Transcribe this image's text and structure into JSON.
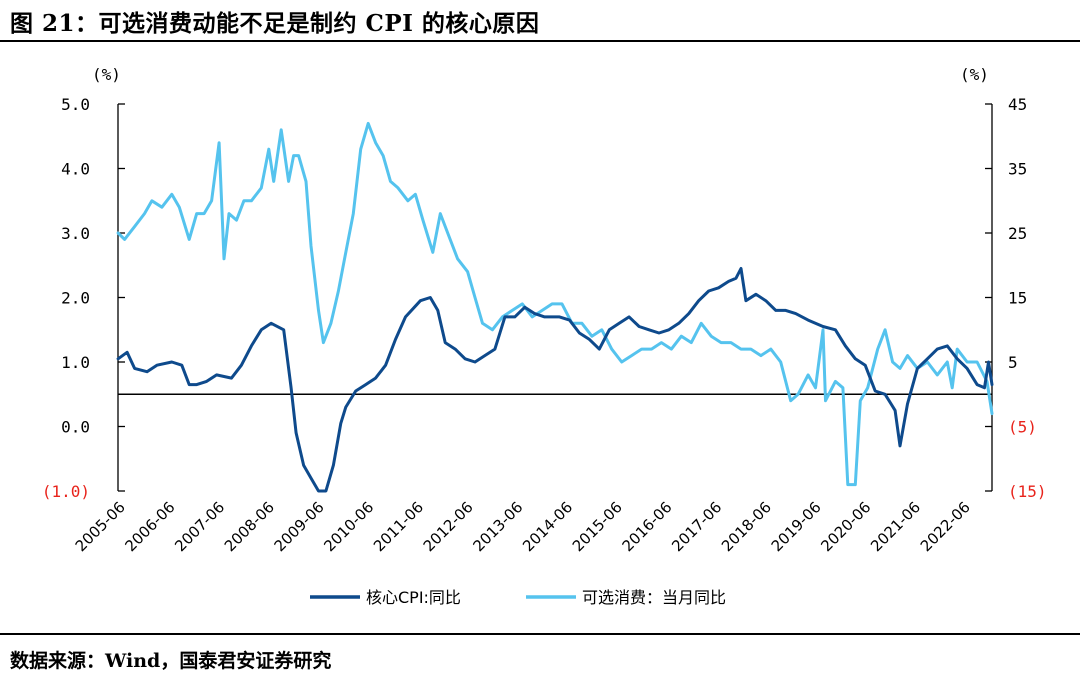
{
  "figure": {
    "title": "图 21：可选消费动能不足是制约 CPI 的核心原因",
    "source": "数据来源：Wind，国泰君安证券研究"
  },
  "colors": {
    "core_cpi": "#0e4a8c",
    "discretionary": "#55c3ee",
    "axis": "#000000",
    "negative_label": "#e8231b"
  },
  "chart_data": {
    "type": "line",
    "left_axis": {
      "unit": "(%)",
      "ylim": [
        -1.0,
        5.0
      ],
      "ticks": [
        5.0,
        4.0,
        3.0,
        2.0,
        1.0,
        0.0,
        -1.0
      ],
      "tick_labels": [
        "5.0",
        "4.0",
        "3.0",
        "2.0",
        "1.0",
        "0.0",
        "(1.0)"
      ]
    },
    "right_axis": {
      "unit": "(%)",
      "ylim": [
        -15,
        45
      ],
      "ticks": [
        45,
        35,
        25,
        15,
        5,
        -5,
        -15
      ],
      "tick_labels": [
        "45",
        "35",
        "25",
        "15",
        "5",
        "(5)",
        "(15)"
      ]
    },
    "x_range": [
      2005.417,
      2023.0
    ],
    "x_ticks": [
      2005.417,
      2006.417,
      2007.417,
      2008.417,
      2009.417,
      2010.417,
      2011.417,
      2012.417,
      2013.417,
      2014.417,
      2015.417,
      2016.417,
      2017.417,
      2018.417,
      2019.417,
      2020.417,
      2021.417,
      2022.417
    ],
    "x_tick_labels": [
      "2005-06",
      "2006-06",
      "2007-06",
      "2008-06",
      "2009-06",
      "2010-06",
      "2011-06",
      "2012-06",
      "2013-06",
      "2014-06",
      "2015-06",
      "2016-06",
      "2017-06",
      "2018-06",
      "2019-06",
      "2020-06",
      "2021-06",
      "2022-06"
    ],
    "series": [
      {
        "name": "核心CPI:同比",
        "axis": "left",
        "points": [
          [
            2005.42,
            1.05
          ],
          [
            2005.6,
            1.15
          ],
          [
            2005.75,
            0.9
          ],
          [
            2006.0,
            0.85
          ],
          [
            2006.2,
            0.95
          ],
          [
            2006.5,
            1.0
          ],
          [
            2006.7,
            0.95
          ],
          [
            2006.85,
            0.65
          ],
          [
            2007.0,
            0.65
          ],
          [
            2007.2,
            0.7
          ],
          [
            2007.4,
            0.8
          ],
          [
            2007.7,
            0.75
          ],
          [
            2007.9,
            0.95
          ],
          [
            2008.1,
            1.25
          ],
          [
            2008.3,
            1.5
          ],
          [
            2008.5,
            1.6
          ],
          [
            2008.75,
            1.5
          ],
          [
            2008.9,
            0.6
          ],
          [
            2009.0,
            -0.1
          ],
          [
            2009.15,
            -0.6
          ],
          [
            2009.3,
            -0.8
          ],
          [
            2009.45,
            -1.0
          ],
          [
            2009.6,
            -1.0
          ],
          [
            2009.75,
            -0.6
          ],
          [
            2009.9,
            0.05
          ],
          [
            2010.0,
            0.3
          ],
          [
            2010.2,
            0.55
          ],
          [
            2010.4,
            0.65
          ],
          [
            2010.6,
            0.75
          ],
          [
            2010.8,
            0.95
          ],
          [
            2011.0,
            1.35
          ],
          [
            2011.2,
            1.7
          ],
          [
            2011.5,
            1.95
          ],
          [
            2011.7,
            2.0
          ],
          [
            2011.85,
            1.8
          ],
          [
            2012.0,
            1.3
          ],
          [
            2012.2,
            1.2
          ],
          [
            2012.4,
            1.05
          ],
          [
            2012.6,
            1.0
          ],
          [
            2012.8,
            1.1
          ],
          [
            2013.0,
            1.2
          ],
          [
            2013.2,
            1.7
          ],
          [
            2013.4,
            1.7
          ],
          [
            2013.6,
            1.85
          ],
          [
            2013.8,
            1.75
          ],
          [
            2014.0,
            1.7
          ],
          [
            2014.3,
            1.7
          ],
          [
            2014.5,
            1.65
          ],
          [
            2014.7,
            1.45
          ],
          [
            2014.9,
            1.35
          ],
          [
            2015.1,
            1.2
          ],
          [
            2015.3,
            1.5
          ],
          [
            2015.5,
            1.6
          ],
          [
            2015.7,
            1.7
          ],
          [
            2015.9,
            1.55
          ],
          [
            2016.1,
            1.5
          ],
          [
            2016.3,
            1.45
          ],
          [
            2016.5,
            1.5
          ],
          [
            2016.7,
            1.6
          ],
          [
            2016.9,
            1.75
          ],
          [
            2017.1,
            1.95
          ],
          [
            2017.3,
            2.1
          ],
          [
            2017.5,
            2.15
          ],
          [
            2017.7,
            2.25
          ],
          [
            2017.85,
            2.3
          ],
          [
            2017.95,
            2.45
          ],
          [
            2018.05,
            1.95
          ],
          [
            2018.25,
            2.05
          ],
          [
            2018.45,
            1.95
          ],
          [
            2018.65,
            1.8
          ],
          [
            2018.85,
            1.8
          ],
          [
            2019.05,
            1.75
          ],
          [
            2019.3,
            1.65
          ],
          [
            2019.6,
            1.55
          ],
          [
            2019.85,
            1.5
          ],
          [
            2020.05,
            1.25
          ],
          [
            2020.25,
            1.05
          ],
          [
            2020.45,
            0.95
          ],
          [
            2020.65,
            0.55
          ],
          [
            2020.85,
            0.5
          ],
          [
            2021.05,
            0.25
          ],
          [
            2021.15,
            -0.3
          ],
          [
            2021.3,
            0.35
          ],
          [
            2021.5,
            0.9
          ],
          [
            2021.7,
            1.05
          ],
          [
            2021.9,
            1.2
          ],
          [
            2022.1,
            1.25
          ],
          [
            2022.3,
            1.05
          ],
          [
            2022.5,
            0.9
          ],
          [
            2022.7,
            0.65
          ],
          [
            2022.85,
            0.6
          ],
          [
            2022.93,
            1.0
          ],
          [
            2023.0,
            0.65
          ]
        ]
      },
      {
        "name": "可选消费：当月同比",
        "axis": "right",
        "points": [
          [
            2005.42,
            25
          ],
          [
            2005.55,
            24
          ],
          [
            2005.75,
            26
          ],
          [
            2005.95,
            28
          ],
          [
            2006.1,
            30
          ],
          [
            2006.3,
            29
          ],
          [
            2006.5,
            31
          ],
          [
            2006.65,
            29
          ],
          [
            2006.85,
            24
          ],
          [
            2007.0,
            28
          ],
          [
            2007.15,
            28
          ],
          [
            2007.3,
            30
          ],
          [
            2007.45,
            39
          ],
          [
            2007.55,
            21
          ],
          [
            2007.65,
            28
          ],
          [
            2007.8,
            27
          ],
          [
            2007.95,
            30
          ],
          [
            2008.1,
            30
          ],
          [
            2008.3,
            32
          ],
          [
            2008.45,
            38
          ],
          [
            2008.55,
            33
          ],
          [
            2008.7,
            41
          ],
          [
            2008.85,
            33
          ],
          [
            2008.95,
            37
          ],
          [
            2009.05,
            37
          ],
          [
            2009.2,
            33
          ],
          [
            2009.3,
            23
          ],
          [
            2009.45,
            13
          ],
          [
            2009.55,
            8
          ],
          [
            2009.7,
            11
          ],
          [
            2009.85,
            16
          ],
          [
            2010.0,
            22
          ],
          [
            2010.15,
            28
          ],
          [
            2010.3,
            38
          ],
          [
            2010.45,
            42
          ],
          [
            2010.6,
            39
          ],
          [
            2010.75,
            37
          ],
          [
            2010.9,
            33
          ],
          [
            2011.05,
            32
          ],
          [
            2011.25,
            30
          ],
          [
            2011.4,
            31
          ],
          [
            2011.55,
            27
          ],
          [
            2011.75,
            22
          ],
          [
            2011.9,
            28
          ],
          [
            2012.05,
            25
          ],
          [
            2012.25,
            21
          ],
          [
            2012.45,
            19
          ],
          [
            2012.6,
            15
          ],
          [
            2012.75,
            11
          ],
          [
            2012.95,
            10
          ],
          [
            2013.15,
            12
          ],
          [
            2013.35,
            13
          ],
          [
            2013.55,
            14
          ],
          [
            2013.75,
            12
          ],
          [
            2013.95,
            13
          ],
          [
            2014.15,
            14
          ],
          [
            2014.35,
            14
          ],
          [
            2014.55,
            11
          ],
          [
            2014.75,
            11
          ],
          [
            2014.95,
            9
          ],
          [
            2015.15,
            10
          ],
          [
            2015.35,
            7
          ],
          [
            2015.55,
            5
          ],
          [
            2015.75,
            6
          ],
          [
            2015.95,
            7
          ],
          [
            2016.15,
            7
          ],
          [
            2016.35,
            8
          ],
          [
            2016.55,
            7
          ],
          [
            2016.75,
            9
          ],
          [
            2016.95,
            8
          ],
          [
            2017.15,
            11
          ],
          [
            2017.35,
            9
          ],
          [
            2017.55,
            8
          ],
          [
            2017.75,
            8
          ],
          [
            2017.95,
            7
          ],
          [
            2018.15,
            7
          ],
          [
            2018.35,
            6
          ],
          [
            2018.55,
            7
          ],
          [
            2018.75,
            5
          ],
          [
            2018.95,
            -1
          ],
          [
            2019.1,
            0
          ],
          [
            2019.3,
            3
          ],
          [
            2019.45,
            1
          ],
          [
            2019.6,
            10
          ],
          [
            2019.65,
            -1
          ],
          [
            2019.85,
            2
          ],
          [
            2020.0,
            1
          ],
          [
            2020.1,
            -14
          ],
          [
            2020.25,
            -14
          ],
          [
            2020.35,
            -1
          ],
          [
            2020.5,
            1
          ],
          [
            2020.7,
            7
          ],
          [
            2020.85,
            10
          ],
          [
            2021.0,
            5
          ],
          [
            2021.15,
            4
          ],
          [
            2021.3,
            6
          ],
          [
            2021.5,
            4
          ],
          [
            2021.7,
            5
          ],
          [
            2021.9,
            3
          ],
          [
            2022.1,
            5
          ],
          [
            2022.2,
            1
          ],
          [
            2022.3,
            7
          ],
          [
            2022.5,
            5
          ],
          [
            2022.7,
            5
          ],
          [
            2022.9,
            2
          ],
          [
            2023.0,
            -3
          ]
        ]
      }
    ],
    "baseline": {
      "axis": "right",
      "value": 0
    },
    "legend": {
      "position": "bottom-center"
    }
  }
}
